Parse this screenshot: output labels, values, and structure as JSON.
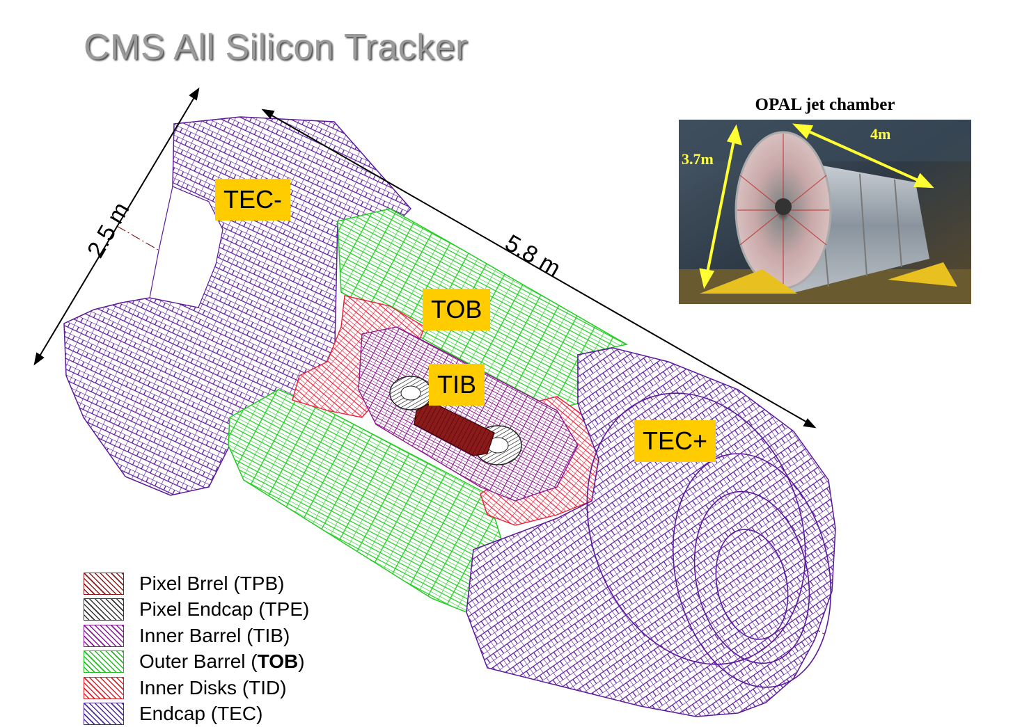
{
  "title": "CMS All Silicon Tracker",
  "dimensions": {
    "diameter": "2.5 m",
    "length": "5.8 m"
  },
  "tags": {
    "tec_minus": "TEC-",
    "tob": "TOB",
    "tib": "TIB",
    "tec_plus": "TEC+"
  },
  "legend": [
    {
      "label": "Pixel Brrel (TPB)",
      "color": "#8b1a1a"
    },
    {
      "label": "Pixel Endcap (TPE)",
      "color": "#333333"
    },
    {
      "label": "Inner Barrel (TIB)",
      "color": "#8a1a9a"
    },
    {
      "label_pre": "Outer Barrel (",
      "label_bold": "TOB",
      "label_post": ")",
      "color": "#22bb22"
    },
    {
      "label": "Inner Disks (TID)",
      "color": "#e0202a"
    },
    {
      "label": "Endcap (TEC)",
      "color": "#4a2a9a"
    }
  ],
  "photo": {
    "title": "OPAL jet chamber",
    "height_label": "3.7m",
    "length_label": "4m"
  },
  "colors": {
    "tec": "#5a1a9a",
    "tob": "#22cc22",
    "tid": "#e8203a",
    "tib": "#8a1a8a",
    "tag_bg": "#ffcc00"
  }
}
